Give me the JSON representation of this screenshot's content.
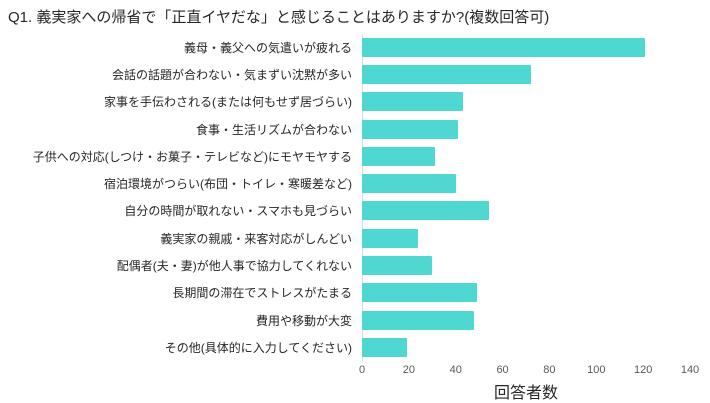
{
  "chart_data": {
    "type": "bar",
    "orientation": "horizontal",
    "title": "Q1. 義実家への帰省で「正直イヤだな」と感じることはありますか?(複数回答可)",
    "categories": [
      "義母・義父への気遣いが疲れる",
      "会話の話題が合わない・気まずい沈黙が多い",
      "家事を手伝わされる(または何もせず居づらい)",
      "食事・生活リズムが合わない",
      "子供への対応(しつけ・お菓子・テレビなど)にモヤモヤする",
      "宿泊環境がつらい(布団・トイレ・寒暖差など)",
      "自分の時間が取れない・スマホも見づらい",
      "義実家の親戚・来客対応がしんどい",
      "配偶者(夫・妻)が他人事で協力してくれない",
      "長期間の滞在でストレスがたまる",
      "費用や移動が大変",
      "その他(具体的に入力してください)"
    ],
    "values": [
      121,
      72,
      43,
      41,
      31,
      40,
      54,
      24,
      30,
      49,
      48,
      19
    ],
    "xlabel": "回答者数",
    "xlim": [
      0,
      140
    ],
    "xticks": [
      0,
      20,
      40,
      60,
      80,
      100,
      120,
      140
    ],
    "bar_color": "#4FD8D2",
    "axis_line_color": "#d9d9d9",
    "grid": false,
    "legend": "none"
  }
}
